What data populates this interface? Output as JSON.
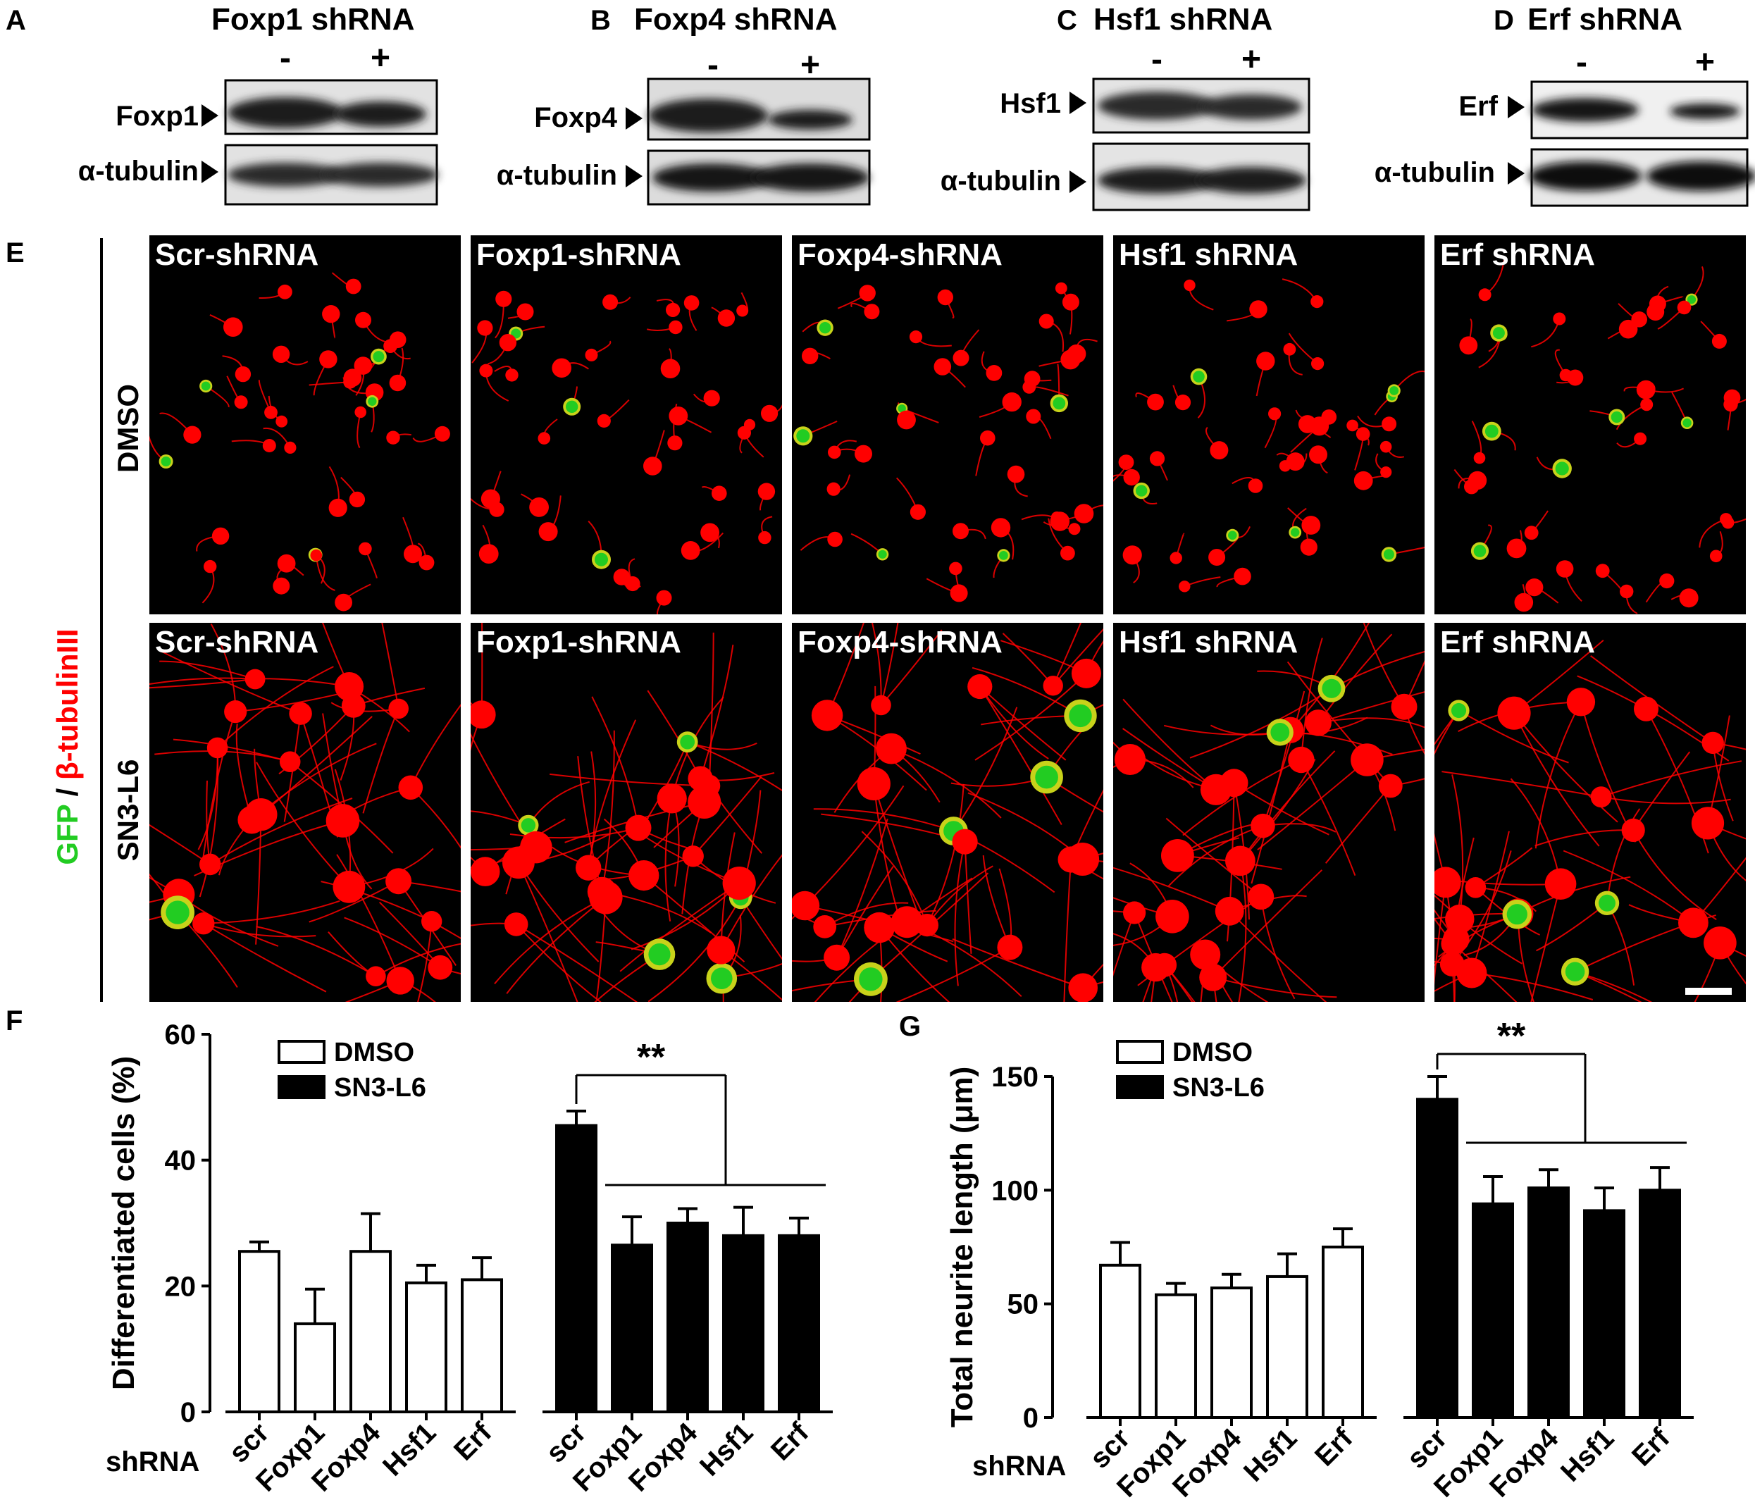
{
  "panel_letters": {
    "a": "A",
    "b": "B",
    "c": "C",
    "d": "D",
    "e": "E",
    "f": "F",
    "g": "G"
  },
  "blots": [
    {
      "letter": "A",
      "title": "Foxp1 shRNA",
      "target_label": "Foxp1",
      "loading_label": "α-tubulin",
      "minus": "-",
      "plus": "+",
      "target_level": [
        1.0,
        0.45
      ]
    },
    {
      "letter": "B",
      "title": "Foxp4 shRNA",
      "target_label": "Foxp4",
      "loading_label": "α-tubulin",
      "minus": "-",
      "plus": "+",
      "target_level": [
        1.0,
        0.3
      ]
    },
    {
      "letter": "C",
      "title": "Hsf1 shRNA",
      "target_label": "Hsf1",
      "loading_label": "α-tubulin",
      "minus": "-",
      "plus": "+",
      "target_level": [
        0.9,
        0.45
      ]
    },
    {
      "letter": "D",
      "title": "Erf shRNA",
      "target_label": "Erf",
      "loading_label": "α-tubulin",
      "minus": "-",
      "plus": "+",
      "target_level": [
        0.85,
        0.4
      ]
    }
  ],
  "micrographs": {
    "stain_label_green": "GFP",
    "stain_label_sep": " / ",
    "stain_label_red": "β-tubulinIII",
    "rows": [
      "DMSO",
      "SN3-L6"
    ],
    "columns": [
      "Scr-shRNA",
      "Foxp1-shRNA",
      "Foxp4-shRNA",
      "Hsf1 shRNA",
      "Erf shRNA"
    ],
    "colors": {
      "green": "#22cc22",
      "red": "#ff0000"
    }
  },
  "chart_data": [
    {
      "panel": "F",
      "type": "bar",
      "ylabel": "Differentiated cells (%)",
      "xlabel": "shRNA",
      "ylim": [
        0,
        60
      ],
      "yticks": [
        0,
        20,
        40,
        60
      ],
      "categories": [
        "scr",
        "Foxp1",
        "Foxp4",
        "Hsf1",
        "Erf"
      ],
      "series": [
        {
          "name": "DMSO",
          "values": [
            25.5,
            14,
            25.5,
            20.5,
            21
          ],
          "errors": [
            1.5,
            5.5,
            6,
            2.8,
            3.5
          ],
          "fill": "#ffffff"
        },
        {
          "name": "SN3-L6",
          "values": [
            45.5,
            26.5,
            30,
            28,
            28
          ],
          "errors": [
            2.3,
            4.5,
            2.3,
            4.5,
            2.8
          ],
          "fill": "#000000"
        }
      ],
      "significance": "**",
      "legend": "top-left"
    },
    {
      "panel": "G",
      "type": "bar",
      "ylabel": "Total neurite length (μm)",
      "xlabel": "shRNA",
      "ylim": [
        0,
        150
      ],
      "yticks": [
        0,
        50,
        100,
        150
      ],
      "categories": [
        "scr",
        "Foxp1",
        "Foxp4",
        "Hsf1",
        "Erf"
      ],
      "series": [
        {
          "name": "DMSO",
          "values": [
            67,
            54,
            57,
            62,
            75
          ],
          "errors": [
            10,
            5,
            6,
            10,
            8
          ],
          "fill": "#ffffff"
        },
        {
          "name": "SN3-L6",
          "values": [
            140,
            94,
            101,
            91,
            100
          ],
          "errors": [
            10,
            12,
            8,
            10,
            10
          ],
          "fill": "#000000"
        }
      ],
      "significance": "**",
      "legend": "top-left"
    }
  ]
}
